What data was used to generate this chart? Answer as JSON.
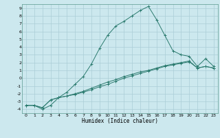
{
  "xlabel": "Humidex (Indice chaleur)",
  "bg_color": "#cce8ee",
  "grid_color": "#aacdd6",
  "line_color": "#2a7a6e",
  "xlim": [
    -0.5,
    23.5
  ],
  "ylim": [
    -4.5,
    9.5
  ],
  "xticks": [
    0,
    1,
    2,
    3,
    4,
    5,
    6,
    7,
    8,
    9,
    10,
    11,
    12,
    13,
    14,
    15,
    16,
    17,
    18,
    19,
    20,
    21,
    22,
    23
  ],
  "yticks": [
    -4,
    -3,
    -2,
    -1,
    0,
    1,
    2,
    3,
    4,
    5,
    6,
    7,
    8,
    9
  ],
  "line1_x": [
    0,
    1,
    2,
    3,
    4,
    5,
    6,
    7,
    8,
    9,
    10,
    11,
    12,
    13,
    14,
    15,
    16,
    17,
    18,
    19,
    20,
    21,
    22,
    23
  ],
  "line1_y": [
    -3.5,
    -3.5,
    -4.0,
    -3.5,
    -2.5,
    -1.8,
    -0.8,
    0.2,
    1.8,
    3.8,
    5.5,
    6.7,
    7.3,
    8.0,
    8.7,
    9.2,
    7.5,
    5.5,
    3.5,
    3.0,
    2.8,
    1.5,
    2.5,
    1.5
  ],
  "line2_x": [
    0,
    1,
    2,
    3,
    4,
    5,
    6,
    7,
    8,
    9,
    10,
    11,
    12,
    13,
    14,
    15,
    16,
    17,
    18,
    19,
    20,
    21,
    22,
    23
  ],
  "line2_y": [
    -3.5,
    -3.5,
    -3.8,
    -2.8,
    -2.5,
    -2.3,
    -2.0,
    -1.7,
    -1.3,
    -0.9,
    -0.5,
    -0.2,
    0.2,
    0.5,
    0.8,
    1.0,
    1.3,
    1.6,
    1.8,
    2.0,
    2.2,
    1.3,
    1.5,
    1.3
  ],
  "line3_x": [
    0,
    1,
    2,
    3,
    4,
    5,
    6,
    7,
    8,
    9,
    10,
    11,
    12,
    13,
    14,
    15,
    16,
    17,
    18,
    19,
    20,
    21,
    22,
    23
  ],
  "line3_y": [
    -3.5,
    -3.5,
    -3.8,
    -2.8,
    -2.5,
    -2.3,
    -2.1,
    -1.8,
    -1.5,
    -1.1,
    -0.8,
    -0.4,
    0.0,
    0.3,
    0.6,
    0.9,
    1.2,
    1.5,
    1.7,
    1.9,
    2.1,
    1.3,
    1.5,
    1.3
  ]
}
